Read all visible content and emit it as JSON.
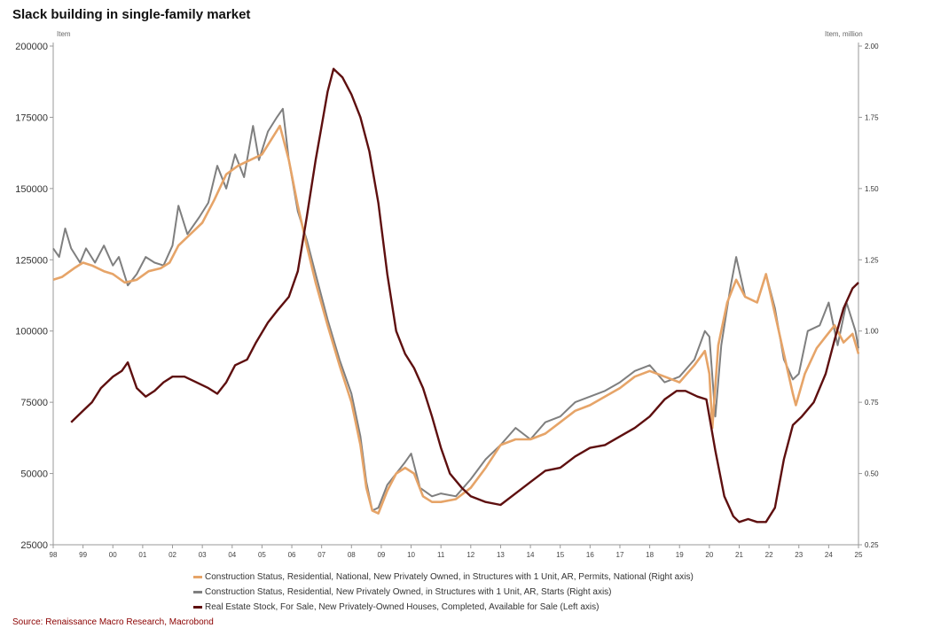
{
  "title": "Slack building in single-family market",
  "source": "Source: Renaissance Macro Research, Macrobond",
  "colors": {
    "permits": "#e6a468",
    "starts": "#7f7f7f",
    "stock": "#5e0f0f"
  },
  "chart_data": {
    "type": "line",
    "left_axis": {
      "unit": "Item",
      "ylim": [
        25000,
        200000
      ],
      "ticks": [
        "200000",
        "175000",
        "150000",
        "125000",
        "100000",
        "75000",
        "50000",
        "25000"
      ]
    },
    "right_axis": {
      "unit": "Item, million",
      "ylim": [
        0.25,
        2.0
      ],
      "ticks": [
        "2.00",
        "1.75",
        "1.50",
        "1.25",
        "1.00",
        "0.75",
        "0.50",
        "0.25"
      ]
    },
    "x_ticks": [
      "98",
      "99",
      "00",
      "01",
      "02",
      "03",
      "04",
      "05",
      "06",
      "07",
      "08",
      "09",
      "10",
      "11",
      "12",
      "13",
      "14",
      "15",
      "16",
      "17",
      "18",
      "19",
      "20",
      "21",
      "22",
      "23",
      "24",
      "25"
    ],
    "x_range": [
      1998.0,
      2025.0
    ],
    "grid": false,
    "legend_position": "bottom",
    "series": [
      {
        "name": "Construction Status, Residential, National, New Privately Owned, in Structures with 1 Unit, AR, Permits, National (Right axis)",
        "axis": "right",
        "color": "#e6a468",
        "points": [
          [
            1998.0,
            1.18
          ],
          [
            1998.3,
            1.19
          ],
          [
            1998.7,
            1.22
          ],
          [
            1999.0,
            1.24
          ],
          [
            1999.3,
            1.23
          ],
          [
            1999.7,
            1.21
          ],
          [
            2000.0,
            1.2
          ],
          [
            2000.4,
            1.17
          ],
          [
            2000.8,
            1.18
          ],
          [
            2001.2,
            1.21
          ],
          [
            2001.6,
            1.22
          ],
          [
            2001.9,
            1.24
          ],
          [
            2002.2,
            1.3
          ],
          [
            2002.6,
            1.34
          ],
          [
            2003.0,
            1.38
          ],
          [
            2003.4,
            1.46
          ],
          [
            2003.8,
            1.55
          ],
          [
            2004.2,
            1.58
          ],
          [
            2004.6,
            1.6
          ],
          [
            2005.0,
            1.62
          ],
          [
            2005.3,
            1.67
          ],
          [
            2005.6,
            1.72
          ],
          [
            2005.9,
            1.6
          ],
          [
            2006.2,
            1.44
          ],
          [
            2006.5,
            1.3
          ],
          [
            2006.8,
            1.17
          ],
          [
            2007.2,
            1.02
          ],
          [
            2007.6,
            0.88
          ],
          [
            2008.0,
            0.75
          ],
          [
            2008.3,
            0.6
          ],
          [
            2008.5,
            0.45
          ],
          [
            2008.7,
            0.37
          ],
          [
            2008.9,
            0.36
          ],
          [
            2009.2,
            0.44
          ],
          [
            2009.5,
            0.5
          ],
          [
            2009.8,
            0.52
          ],
          [
            2010.1,
            0.5
          ],
          [
            2010.4,
            0.42
          ],
          [
            2010.7,
            0.4
          ],
          [
            2011.0,
            0.4
          ],
          [
            2011.5,
            0.41
          ],
          [
            2012.0,
            0.45
          ],
          [
            2012.5,
            0.52
          ],
          [
            2013.0,
            0.6
          ],
          [
            2013.5,
            0.62
          ],
          [
            2014.0,
            0.62
          ],
          [
            2014.5,
            0.64
          ],
          [
            2015.0,
            0.68
          ],
          [
            2015.5,
            0.72
          ],
          [
            2016.0,
            0.74
          ],
          [
            2016.5,
            0.77
          ],
          [
            2017.0,
            0.8
          ],
          [
            2017.5,
            0.84
          ],
          [
            2018.0,
            0.86
          ],
          [
            2018.5,
            0.84
          ],
          [
            2019.0,
            0.82
          ],
          [
            2019.5,
            0.88
          ],
          [
            2019.85,
            0.93
          ],
          [
            2020.0,
            0.85
          ],
          [
            2020.1,
            0.66
          ],
          [
            2020.3,
            0.95
          ],
          [
            2020.6,
            1.1
          ],
          [
            2020.9,
            1.18
          ],
          [
            2021.2,
            1.12
          ],
          [
            2021.6,
            1.1
          ],
          [
            2021.9,
            1.2
          ],
          [
            2022.2,
            1.06
          ],
          [
            2022.5,
            0.92
          ],
          [
            2022.8,
            0.78
          ],
          [
            2022.9,
            0.74
          ],
          [
            2023.2,
            0.85
          ],
          [
            2023.6,
            0.94
          ],
          [
            2023.9,
            0.98
          ],
          [
            2024.2,
            1.02
          ],
          [
            2024.5,
            0.96
          ],
          [
            2024.8,
            0.99
          ],
          [
            2025.0,
            0.92
          ]
        ]
      },
      {
        "name": "Construction Status, Residential, New Privately Owned, in Structures with 1 Unit, AR, Starts (Right axis)",
        "axis": "right",
        "color": "#7f7f7f",
        "points": [
          [
            1998.0,
            1.29
          ],
          [
            1998.2,
            1.26
          ],
          [
            1998.4,
            1.36
          ],
          [
            1998.6,
            1.29
          ],
          [
            1998.9,
            1.24
          ],
          [
            1999.1,
            1.29
          ],
          [
            1999.4,
            1.24
          ],
          [
            1999.7,
            1.3
          ],
          [
            2000.0,
            1.23
          ],
          [
            2000.2,
            1.26
          ],
          [
            2000.5,
            1.16
          ],
          [
            2000.8,
            1.2
          ],
          [
            2001.1,
            1.26
          ],
          [
            2001.4,
            1.24
          ],
          [
            2001.7,
            1.23
          ],
          [
            2002.0,
            1.3
          ],
          [
            2002.2,
            1.44
          ],
          [
            2002.5,
            1.34
          ],
          [
            2002.9,
            1.4
          ],
          [
            2003.2,
            1.45
          ],
          [
            2003.5,
            1.58
          ],
          [
            2003.8,
            1.5
          ],
          [
            2004.1,
            1.62
          ],
          [
            2004.4,
            1.54
          ],
          [
            2004.7,
            1.72
          ],
          [
            2004.9,
            1.6
          ],
          [
            2005.2,
            1.7
          ],
          [
            2005.5,
            1.75
          ],
          [
            2005.7,
            1.78
          ],
          [
            2005.9,
            1.6
          ],
          [
            2006.2,
            1.42
          ],
          [
            2006.5,
            1.32
          ],
          [
            2006.8,
            1.2
          ],
          [
            2007.2,
            1.04
          ],
          [
            2007.6,
            0.9
          ],
          [
            2008.0,
            0.78
          ],
          [
            2008.3,
            0.63
          ],
          [
            2008.5,
            0.47
          ],
          [
            2008.7,
            0.37
          ],
          [
            2008.9,
            0.38
          ],
          [
            2009.2,
            0.46
          ],
          [
            2009.5,
            0.5
          ],
          [
            2009.8,
            0.54
          ],
          [
            2010.0,
            0.57
          ],
          [
            2010.3,
            0.45
          ],
          [
            2010.7,
            0.42
          ],
          [
            2011.0,
            0.43
          ],
          [
            2011.5,
            0.42
          ],
          [
            2012.0,
            0.48
          ],
          [
            2012.5,
            0.55
          ],
          [
            2013.0,
            0.6
          ],
          [
            2013.5,
            0.66
          ],
          [
            2014.0,
            0.62
          ],
          [
            2014.5,
            0.68
          ],
          [
            2015.0,
            0.7
          ],
          [
            2015.5,
            0.75
          ],
          [
            2016.0,
            0.77
          ],
          [
            2016.5,
            0.79
          ],
          [
            2017.0,
            0.82
          ],
          [
            2017.5,
            0.86
          ],
          [
            2018.0,
            0.88
          ],
          [
            2018.5,
            0.82
          ],
          [
            2019.0,
            0.84
          ],
          [
            2019.5,
            0.9
          ],
          [
            2019.85,
            1.0
          ],
          [
            2020.0,
            0.98
          ],
          [
            2020.2,
            0.7
          ],
          [
            2020.4,
            0.95
          ],
          [
            2020.7,
            1.15
          ],
          [
            2020.9,
            1.26
          ],
          [
            2021.2,
            1.12
          ],
          [
            2021.6,
            1.1
          ],
          [
            2021.9,
            1.2
          ],
          [
            2022.2,
            1.08
          ],
          [
            2022.5,
            0.9
          ],
          [
            2022.8,
            0.83
          ],
          [
            2023.0,
            0.85
          ],
          [
            2023.3,
            1.0
          ],
          [
            2023.7,
            1.02
          ],
          [
            2024.0,
            1.1
          ],
          [
            2024.3,
            0.95
          ],
          [
            2024.6,
            1.1
          ],
          [
            2024.9,
            1.0
          ],
          [
            2025.0,
            0.94
          ]
        ]
      },
      {
        "name": "Real Estate Stock, For Sale, New Privately-Owned Houses, Completed, Available for Sale (Left axis)",
        "axis": "left",
        "color": "#5e0f0f",
        "points": [
          [
            1998.6,
            68000
          ],
          [
            1999.0,
            72000
          ],
          [
            1999.3,
            75000
          ],
          [
            1999.6,
            80000
          ],
          [
            2000.0,
            84000
          ],
          [
            2000.3,
            86000
          ],
          [
            2000.5,
            89000
          ],
          [
            2000.8,
            80000
          ],
          [
            2001.1,
            77000
          ],
          [
            2001.4,
            79000
          ],
          [
            2001.7,
            82000
          ],
          [
            2002.0,
            84000
          ],
          [
            2002.4,
            84000
          ],
          [
            2002.8,
            82000
          ],
          [
            2003.2,
            80000
          ],
          [
            2003.5,
            78000
          ],
          [
            2003.8,
            82000
          ],
          [
            2004.1,
            88000
          ],
          [
            2004.5,
            90000
          ],
          [
            2004.8,
            96000
          ],
          [
            2005.2,
            103000
          ],
          [
            2005.5,
            107000
          ],
          [
            2005.9,
            112000
          ],
          [
            2006.2,
            121000
          ],
          [
            2006.5,
            140000
          ],
          [
            2006.8,
            160000
          ],
          [
            2007.0,
            172000
          ],
          [
            2007.2,
            184000
          ],
          [
            2007.4,
            192000
          ],
          [
            2007.7,
            189000
          ],
          [
            2008.0,
            183000
          ],
          [
            2008.3,
            175000
          ],
          [
            2008.6,
            163000
          ],
          [
            2008.9,
            145000
          ],
          [
            2009.2,
            120000
          ],
          [
            2009.5,
            100000
          ],
          [
            2009.8,
            92000
          ],
          [
            2010.1,
            87000
          ],
          [
            2010.4,
            80000
          ],
          [
            2010.7,
            70000
          ],
          [
            2011.0,
            59000
          ],
          [
            2011.3,
            50000
          ],
          [
            2011.7,
            45000
          ],
          [
            2012.0,
            42000
          ],
          [
            2012.5,
            40000
          ],
          [
            2013.0,
            39000
          ],
          [
            2013.5,
            43000
          ],
          [
            2014.0,
            47000
          ],
          [
            2014.5,
            51000
          ],
          [
            2015.0,
            52000
          ],
          [
            2015.5,
            56000
          ],
          [
            2016.0,
            59000
          ],
          [
            2016.5,
            60000
          ],
          [
            2017.0,
            63000
          ],
          [
            2017.5,
            66000
          ],
          [
            2018.0,
            70000
          ],
          [
            2018.5,
            76000
          ],
          [
            2018.9,
            79000
          ],
          [
            2019.2,
            79000
          ],
          [
            2019.6,
            77000
          ],
          [
            2019.9,
            76000
          ],
          [
            2020.2,
            58000
          ],
          [
            2020.5,
            42000
          ],
          [
            2020.8,
            35000
          ],
          [
            2021.0,
            33000
          ],
          [
            2021.3,
            34000
          ],
          [
            2021.6,
            33000
          ],
          [
            2021.9,
            33000
          ],
          [
            2022.2,
            38000
          ],
          [
            2022.5,
            55000
          ],
          [
            2022.8,
            67000
          ],
          [
            2023.1,
            70000
          ],
          [
            2023.5,
            75000
          ],
          [
            2023.9,
            85000
          ],
          [
            2024.2,
            97000
          ],
          [
            2024.5,
            108000
          ],
          [
            2024.8,
            115000
          ],
          [
            2025.0,
            117000
          ]
        ]
      }
    ]
  }
}
